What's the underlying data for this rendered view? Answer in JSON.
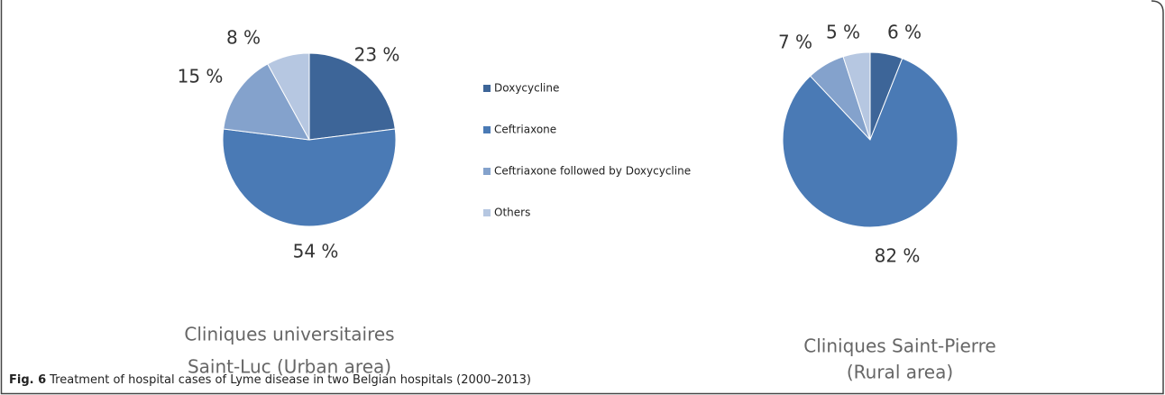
{
  "legend": {
    "categories": [
      "Doxycycline",
      "Ceftriaxone",
      "Ceftriaxone followed by Doxycycline",
      "Others"
    ],
    "colors": [
      "#3d6598",
      "#4a7ab5",
      "#84a2cc",
      "#b6c7e1"
    ]
  },
  "chart_data": [
    {
      "type": "pie",
      "title": [
        "Cliniques universitaires",
        "Saint-Luc (Urban area)"
      ],
      "values": [
        23,
        54,
        15,
        8
      ],
      "value_labels": [
        "23 %",
        "54 %",
        "15 %",
        "8 %"
      ]
    },
    {
      "type": "pie",
      "title": [
        "Cliniques Saint-Pierre",
        "(Rural area)"
      ],
      "values": [
        6,
        82,
        7,
        5
      ],
      "value_labels": [
        "6 %",
        "82 %",
        "7 %",
        "5 %"
      ]
    }
  ],
  "caption": {
    "label": "Fig. 6",
    "text": "Treatment of hospital cases of Lyme disease in two Belgian hospitals (2000–2013)"
  }
}
